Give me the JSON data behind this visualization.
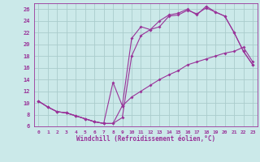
{
  "background_color": "#cbe9e9",
  "grid_color": "#aacccc",
  "line_color": "#993399",
  "xlabel": "Windchill (Refroidissement éolien,°C)",
  "xlim": [
    -0.5,
    23.5
  ],
  "ylim": [
    6,
    27
  ],
  "xticks": [
    0,
    1,
    2,
    3,
    4,
    5,
    6,
    7,
    8,
    9,
    10,
    11,
    12,
    13,
    14,
    15,
    16,
    17,
    18,
    19,
    20,
    21,
    22,
    23
  ],
  "yticks": [
    6,
    8,
    10,
    12,
    14,
    16,
    18,
    20,
    22,
    24,
    26
  ],
  "line1_x": [
    0,
    1,
    2,
    3,
    4,
    5,
    6,
    7,
    8,
    9,
    10,
    11,
    12,
    13,
    14,
    15,
    16,
    17,
    18,
    19,
    20,
    21,
    22,
    23
  ],
  "line1_y": [
    10.3,
    9.3,
    8.5,
    8.3,
    7.8,
    7.3,
    6.8,
    6.5,
    6.5,
    7.5,
    18.0,
    21.5,
    22.5,
    23.0,
    24.8,
    25.0,
    25.8,
    25.2,
    26.2,
    25.5,
    24.8,
    22.0,
    18.8,
    16.5
  ],
  "line2_x": [
    0,
    1,
    2,
    3,
    4,
    5,
    6,
    7,
    8,
    9,
    10,
    11,
    12,
    13,
    14,
    15,
    16,
    17,
    18,
    19,
    20,
    21,
    22,
    23
  ],
  "line2_y": [
    10.3,
    9.3,
    8.5,
    8.3,
    7.8,
    7.3,
    6.8,
    6.5,
    13.5,
    9.5,
    21.0,
    23.0,
    22.5,
    24.0,
    25.0,
    25.3,
    26.0,
    25.0,
    26.5,
    25.5,
    24.8,
    22.0,
    18.8,
    16.5
  ],
  "line3_x": [
    0,
    1,
    2,
    3,
    4,
    5,
    6,
    7,
    8,
    9,
    10,
    11,
    12,
    13,
    14,
    15,
    16,
    17,
    18,
    19,
    20,
    21,
    22,
    23
  ],
  "line3_y": [
    10.3,
    9.3,
    8.5,
    8.3,
    7.8,
    7.3,
    6.8,
    6.5,
    6.5,
    9.5,
    11.0,
    12.0,
    13.0,
    14.0,
    14.8,
    15.5,
    16.5,
    17.0,
    17.5,
    18.0,
    18.5,
    18.8,
    19.5,
    17.0
  ]
}
